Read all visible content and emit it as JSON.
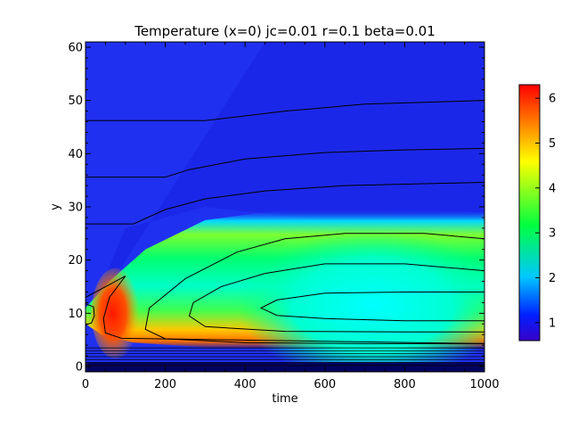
{
  "chart_data": {
    "type": "heatmap",
    "title": "Temperature (x=0) jc=0.01 r=0.1 beta=0.01",
    "xlabel": "time",
    "ylabel": "y",
    "xlim": [
      0,
      1000
    ],
    "ylim": [
      -1,
      61
    ],
    "x_ticks": [
      0,
      200,
      400,
      600,
      800,
      1000
    ],
    "y_ticks": [
      0,
      10,
      20,
      30,
      40,
      50,
      60
    ],
    "colorbar": {
      "range": [
        0.6,
        6.3
      ],
      "ticks": [
        1,
        2,
        3,
        4,
        5,
        6
      ],
      "colormap": "rainbow",
      "colors": [
        "#3a00c8",
        "#0020ff",
        "#00c8ff",
        "#00ff40",
        "#ffff00",
        "#ff8000",
        "#ff0000"
      ]
    },
    "contours": [
      {
        "level": "lowest",
        "points": [
          [
            0,
            46.2
          ],
          [
            300,
            46.2
          ],
          [
            500,
            48
          ],
          [
            700,
            49.3
          ],
          [
            1000,
            50
          ]
        ]
      },
      {
        "level": "low-2",
        "points": [
          [
            0,
            35.6
          ],
          [
            200,
            35.6
          ],
          [
            260,
            37
          ],
          [
            400,
            39
          ],
          [
            600,
            40.2
          ],
          [
            800,
            40.7
          ],
          [
            1000,
            41
          ]
        ]
      },
      {
        "level": "low-3",
        "points": [
          [
            0,
            26.8
          ],
          [
            120,
            26.8
          ],
          [
            200,
            29.5
          ],
          [
            300,
            31.5
          ],
          [
            450,
            33
          ],
          [
            650,
            34
          ],
          [
            1000,
            34.6
          ]
        ]
      },
      {
        "level": "mid-1",
        "points": [
          [
            1000,
            24
          ],
          [
            850,
            25
          ],
          [
            650,
            25
          ],
          [
            500,
            24
          ],
          [
            380,
            21.5
          ],
          [
            250,
            16.5
          ],
          [
            160,
            11
          ],
          [
            150,
            7
          ],
          [
            200,
            5.2
          ],
          [
            400,
            4.5
          ],
          [
            700,
            4.3
          ],
          [
            1000,
            4.3
          ]
        ]
      },
      {
        "level": "mid-2",
        "points": [
          [
            1000,
            18
          ],
          [
            800,
            19.3
          ],
          [
            600,
            19.3
          ],
          [
            450,
            17.5
          ],
          [
            340,
            15
          ],
          [
            270,
            12
          ],
          [
            260,
            9.5
          ],
          [
            300,
            7.5
          ],
          [
            500,
            6.6
          ],
          [
            800,
            6.5
          ],
          [
            1000,
            6.5
          ]
        ]
      },
      {
        "level": "mid-3",
        "points": [
          [
            1000,
            14
          ],
          [
            800,
            14
          ],
          [
            600,
            13.8
          ],
          [
            480,
            12.5
          ],
          [
            440,
            11
          ],
          [
            480,
            9.6
          ],
          [
            600,
            9
          ],
          [
            800,
            8.6
          ],
          [
            1000,
            8.6
          ]
        ]
      },
      {
        "level": "peak",
        "points": [
          [
            0,
            13
          ],
          [
            100,
            17
          ],
          [
            60,
            13
          ],
          [
            45,
            9
          ],
          [
            50,
            6.3
          ],
          [
            90,
            5.3
          ],
          [
            1000,
            4.3
          ]
        ]
      },
      {
        "level": "edge",
        "points": [
          [
            0,
            11.8
          ],
          [
            20,
            11.2
          ],
          [
            22,
            9.5
          ],
          [
            15,
            8.2
          ],
          [
            0,
            7.8
          ]
        ]
      }
    ]
  }
}
